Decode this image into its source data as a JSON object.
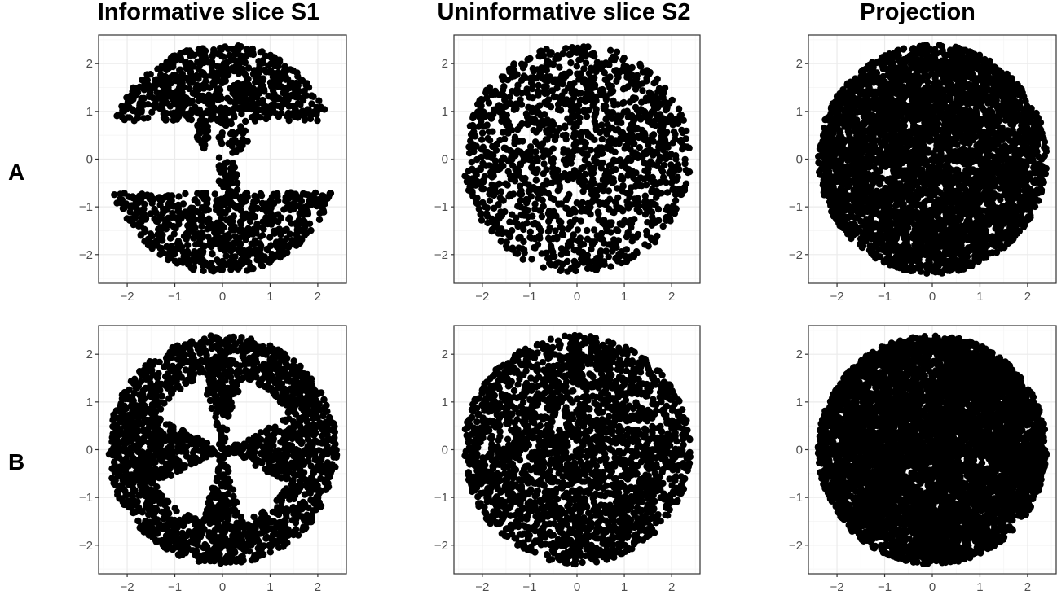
{
  "column_titles": [
    "Informative slice S1",
    "Uninformative slice S2",
    "Projection"
  ],
  "row_labels": [
    "A",
    "B"
  ],
  "colors": {
    "point": "#000000",
    "grid": "#ebebeb",
    "panel_border": "#333333",
    "tick_text": "#4d4d4d",
    "background": "#ffffff"
  },
  "chart_data": [
    {
      "type": "scatter",
      "row": "A",
      "title": "Informative slice S1",
      "pattern": "slice_holes_A",
      "n_points": 1500,
      "xlim": [
        -2.6,
        2.6
      ],
      "ylim": [
        -2.6,
        2.6
      ],
      "xticks": [
        -2,
        -1,
        0,
        1,
        2
      ],
      "yticks": [
        -2,
        -1,
        0,
        1,
        2
      ],
      "tick_labels": [
        "−2",
        "−1",
        "0",
        "1",
        "2"
      ],
      "grid": true,
      "radius": 2.4,
      "legend": "none"
    },
    {
      "type": "scatter",
      "row": "A",
      "title": "Uninformative slice S2",
      "pattern": "uniform_disk",
      "n_points": 1500,
      "xlim": [
        -2.6,
        2.6
      ],
      "ylim": [
        -2.6,
        2.6
      ],
      "xticks": [
        -2,
        -1,
        0,
        1,
        2
      ],
      "yticks": [
        -2,
        -1,
        0,
        1,
        2
      ],
      "tick_labels": [
        "−2",
        "−1",
        "0",
        "1",
        "2"
      ],
      "grid": true,
      "radius": 2.4,
      "legend": "none"
    },
    {
      "type": "scatter",
      "row": "A",
      "title": "Projection",
      "pattern": "uniform_disk",
      "n_points": 4200,
      "xlim": [
        -2.6,
        2.6
      ],
      "ylim": [
        -2.6,
        2.6
      ],
      "xticks": [
        -2,
        -1,
        0,
        1,
        2
      ],
      "yticks": [
        -2,
        -1,
        0,
        1,
        2
      ],
      "tick_labels": [
        "−2",
        "−1",
        "0",
        "1",
        "2"
      ],
      "grid": true,
      "radius": 2.4,
      "legend": "none"
    },
    {
      "type": "scatter",
      "row": "B",
      "title": "Informative slice S1",
      "pattern": "slice_holes_B",
      "n_points": 2400,
      "xlim": [
        -2.6,
        2.6
      ],
      "ylim": [
        -2.6,
        2.6
      ],
      "xticks": [
        -2,
        -1,
        0,
        1,
        2
      ],
      "yticks": [
        -2,
        -1,
        0,
        1,
        2
      ],
      "tick_labels": [
        "−2",
        "−1",
        "0",
        "1",
        "2"
      ],
      "grid": true,
      "radius": 2.4,
      "legend": "none"
    },
    {
      "type": "scatter",
      "row": "B",
      "title": "Uninformative slice S2",
      "pattern": "uniform_disk",
      "n_points": 2400,
      "xlim": [
        -2.6,
        2.6
      ],
      "ylim": [
        -2.6,
        2.6
      ],
      "xticks": [
        -2,
        -1,
        0,
        1,
        2
      ],
      "yticks": [
        -2,
        -1,
        0,
        1,
        2
      ],
      "tick_labels": [
        "−2",
        "−1",
        "0",
        "1",
        "2"
      ],
      "grid": true,
      "radius": 2.4,
      "legend": "none"
    },
    {
      "type": "scatter",
      "row": "B",
      "title": "Projection",
      "pattern": "uniform_disk",
      "n_points": 5500,
      "xlim": [
        -2.6,
        2.6
      ],
      "ylim": [
        -2.6,
        2.6
      ],
      "xticks": [
        -2,
        -1,
        0,
        1,
        2
      ],
      "yticks": [
        -2,
        -1,
        0,
        1,
        2
      ],
      "tick_labels": [
        "−2",
        "−1",
        "0",
        "1",
        "2"
      ],
      "grid": true,
      "radius": 2.4,
      "legend": "none"
    }
  ]
}
